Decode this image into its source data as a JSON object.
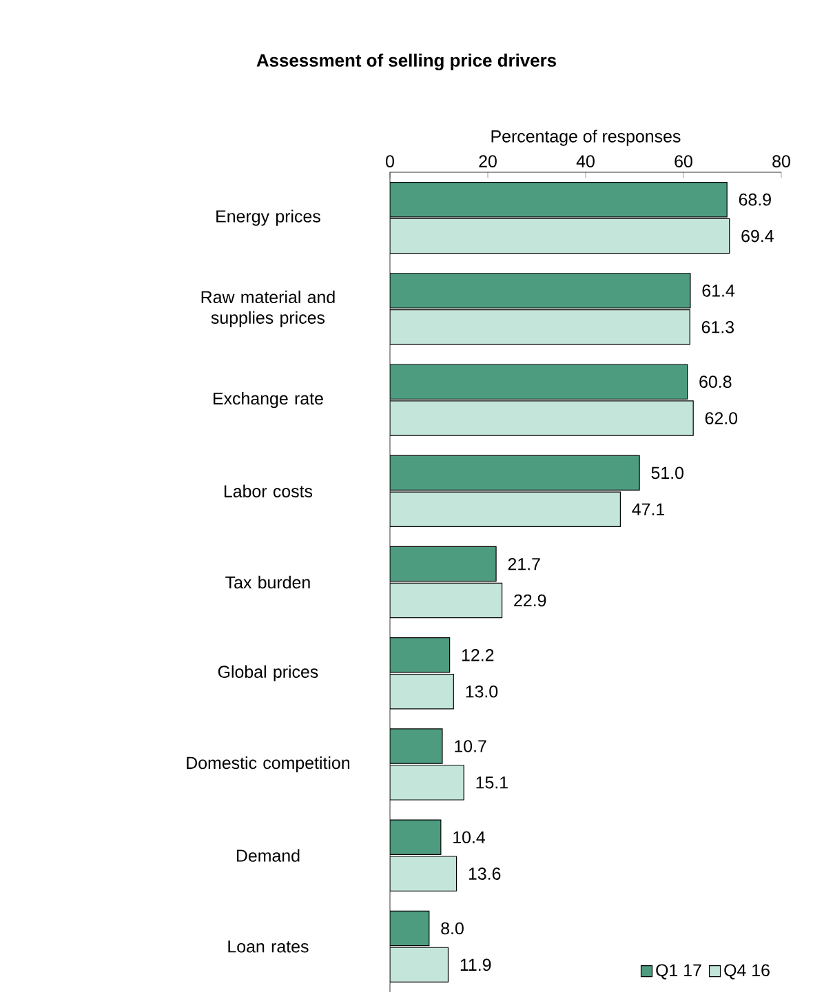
{
  "chart_data": {
    "type": "bar",
    "orientation": "horizontal",
    "title": "Assessment  of selling price drivers",
    "xlabel": "Percentage of responses",
    "categories": [
      "Energy prices",
      "Raw material and supplies prices",
      "Exchange rate",
      "Labor costs",
      "Tax burden",
      "Global prices",
      "Domestic competition",
      "Demand",
      "Loan rates"
    ],
    "series": [
      {
        "name": "Q1 17",
        "color": "#4e9c80",
        "values": [
          68.9,
          61.4,
          60.8,
          51.0,
          21.7,
          12.2,
          10.7,
          10.4,
          8.0
        ],
        "value_labels": [
          "68.9",
          "61.4",
          "60.8",
          "51.0",
          "21.7",
          "12.2",
          "10.7",
          "10.4",
          "8.0"
        ]
      },
      {
        "name": "Q4 16",
        "color": "#c4e6da",
        "values": [
          69.4,
          61.3,
          62.0,
          47.1,
          22.9,
          13.0,
          15.1,
          13.6,
          11.9
        ],
        "value_labels": [
          "69.4",
          "61.3",
          "62.0",
          "47.1",
          "22.9",
          "13.0",
          "15.1",
          "13.6",
          "11.9"
        ]
      }
    ],
    "xlim": [
      0,
      80
    ],
    "xticks": [
      0,
      20,
      40,
      60,
      80
    ],
    "legend": "bottom right",
    "grid": false
  }
}
